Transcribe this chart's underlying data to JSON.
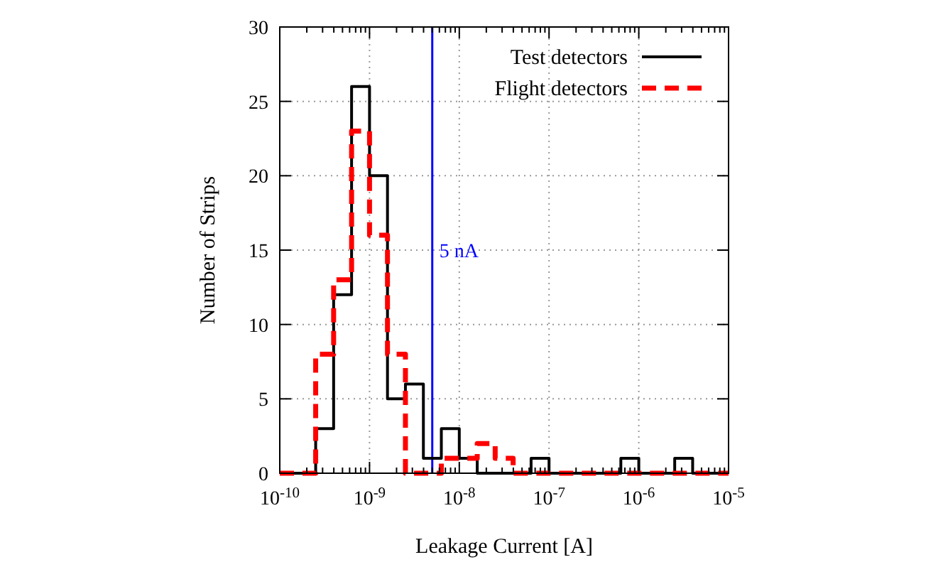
{
  "chart_data": {
    "type": "histogram",
    "xlabel": "Leakage Current [A]",
    "ylabel": "Number of Strips",
    "log": "x",
    "bins": [
      1e-10,
      1.585e-10,
      2.512e-10,
      3.981e-10,
      6.31e-10,
      1e-09,
      1.585e-09,
      2.512e-09,
      3.981e-09,
      6.31e-09,
      1e-08,
      1.585e-08,
      2.512e-08,
      3.981e-08,
      6.31e-08,
      1e-07,
      1.585e-07,
      2.512e-07,
      3.981e-07,
      6.31e-07,
      1e-06,
      1.585e-06,
      2.512e-06,
      3.981e-06,
      6.31e-06,
      1e-05
    ],
    "series": [
      {
        "name": "Test detectors",
        "color": "#000000",
        "line_style": "solid",
        "values": [
          0,
          0,
          3,
          12,
          26,
          20,
          5,
          6,
          1,
          3,
          1,
          0,
          0,
          0,
          1,
          0,
          0,
          0,
          0,
          1,
          0,
          0,
          1,
          0,
          0
        ]
      },
      {
        "name": "Flight detectors",
        "color": "#ff0000",
        "line_style": "dashed",
        "values": [
          0,
          0,
          8,
          13,
          23,
          16,
          8,
          0,
          0,
          1,
          1,
          2,
          1,
          0,
          0,
          0,
          0,
          0,
          0,
          0,
          0,
          0,
          0,
          0,
          0
        ]
      }
    ],
    "xlim": [
      1e-10,
      1e-05
    ],
    "xticks": [
      {
        "value": 1e-10,
        "label": "10$^{-10}$"
      },
      {
        "value": 1e-09,
        "label": "10$^{-9}$"
      },
      {
        "value": 1e-08,
        "label": "10$^{-8}$"
      },
      {
        "value": 1e-07,
        "label": "10$^{-7}$"
      },
      {
        "value": 1e-06,
        "label": "10$^{-6}$"
      },
      {
        "value": 1e-05,
        "label": "10$^{-5}$"
      }
    ],
    "ylim": [
      0,
      30
    ],
    "yticks": [
      0,
      5,
      10,
      15,
      20,
      25,
      30
    ],
    "grid": true,
    "legend": "top right",
    "ref_lines": [
      {
        "axis": "x",
        "value": 5e-09,
        "label": "5 nA",
        "color": "#0000ff"
      }
    ]
  }
}
